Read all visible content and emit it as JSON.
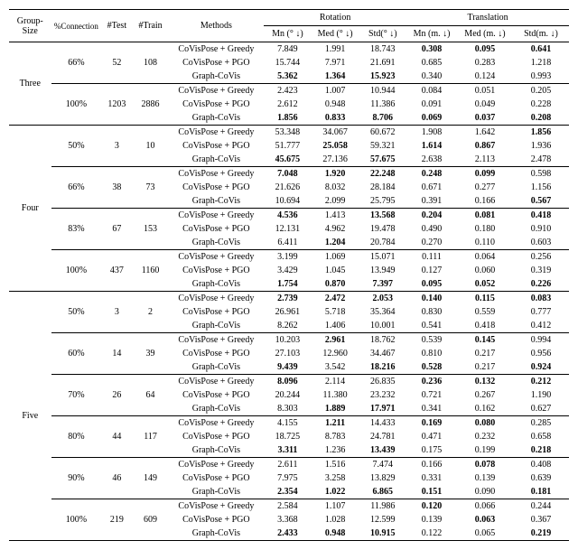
{
  "headers": {
    "group_size": "Group-Size",
    "pct_conn": "%Connection",
    "n_test": "#Test",
    "n_train": "#Train",
    "methods": "Methods",
    "rotation": "Rotation",
    "translation": "Translation",
    "sub": {
      "mn_deg": "Mn (° ↓)",
      "med_deg": "Med (° ↓)",
      "std_deg": "Std(° ↓)",
      "mn_m": "Mn (m. ↓)",
      "med_m": "Med (m. ↓)",
      "std_m": "Std(m. ↓)"
    }
  },
  "method_names": [
    "CoVisPose + Greedy",
    "CoVisPose + PGO",
    "Graph-CoVis"
  ],
  "rows": [
    {
      "grp": "Three",
      "pct": "66%",
      "test": "52",
      "train": "108",
      "m": [
        {
          "v": [
            "7.849",
            "1.991",
            "18.743",
            "0.308",
            "0.095",
            "0.641"
          ],
          "b": [
            0,
            0,
            0,
            1,
            1,
            1
          ]
        },
        {
          "v": [
            "15.744",
            "7.971",
            "21.691",
            "0.685",
            "0.283",
            "1.218"
          ],
          "b": [
            0,
            0,
            0,
            0,
            0,
            0
          ]
        },
        {
          "v": [
            "5.362",
            "1.364",
            "15.923",
            "0.340",
            "0.124",
            "0.993"
          ],
          "b": [
            1,
            1,
            1,
            0,
            0,
            0
          ]
        }
      ]
    },
    {
      "grp": "",
      "pct": "100%",
      "test": "1203",
      "train": "2886",
      "m": [
        {
          "v": [
            "2.423",
            "1.007",
            "10.944",
            "0.084",
            "0.051",
            "0.205"
          ],
          "b": [
            0,
            0,
            0,
            0,
            0,
            0
          ]
        },
        {
          "v": [
            "2.612",
            "0.948",
            "11.386",
            "0.091",
            "0.049",
            "0.228"
          ],
          "b": [
            0,
            0,
            0,
            0,
            0,
            0
          ]
        },
        {
          "v": [
            "1.856",
            "0.833",
            "8.706",
            "0.069",
            "0.037",
            "0.208"
          ],
          "b": [
            1,
            1,
            1,
            1,
            1,
            1
          ]
        }
      ]
    },
    {
      "grp": "Four",
      "pct": "50%",
      "test": "3",
      "train": "10",
      "m": [
        {
          "v": [
            "53.348",
            "34.067",
            "60.672",
            "1.908",
            "1.642",
            "1.856"
          ],
          "b": [
            0,
            0,
            0,
            0,
            0,
            1
          ]
        },
        {
          "v": [
            "51.777",
            "25.058",
            "59.321",
            "1.614",
            "0.867",
            "1.936"
          ],
          "b": [
            0,
            1,
            0,
            1,
            1,
            0
          ]
        },
        {
          "v": [
            "45.675",
            "27.136",
            "57.675",
            "2.638",
            "2.113",
            "2.478"
          ],
          "b": [
            1,
            0,
            1,
            0,
            0,
            0
          ]
        }
      ]
    },
    {
      "grp": "",
      "pct": "66%",
      "test": "38",
      "train": "73",
      "m": [
        {
          "v": [
            "7.048",
            "1.920",
            "22.248",
            "0.248",
            "0.099",
            "0.598"
          ],
          "b": [
            1,
            1,
            1,
            1,
            1,
            0
          ]
        },
        {
          "v": [
            "21.626",
            "8.032",
            "28.184",
            "0.671",
            "0.277",
            "1.156"
          ],
          "b": [
            0,
            0,
            0,
            0,
            0,
            0
          ]
        },
        {
          "v": [
            "10.694",
            "2.099",
            "25.795",
            "0.391",
            "0.166",
            "0.567"
          ],
          "b": [
            0,
            0,
            0,
            0,
            0,
            1
          ]
        }
      ]
    },
    {
      "grp": "",
      "pct": "83%",
      "test": "67",
      "train": "153",
      "m": [
        {
          "v": [
            "4.536",
            "1.413",
            "13.568",
            "0.204",
            "0.081",
            "0.418"
          ],
          "b": [
            1,
            0,
            1,
            1,
            1,
            1
          ]
        },
        {
          "v": [
            "12.131",
            "4.962",
            "19.478",
            "0.490",
            "0.180",
            "0.910"
          ],
          "b": [
            0,
            0,
            0,
            0,
            0,
            0
          ]
        },
        {
          "v": [
            "6.411",
            "1.204",
            "20.784",
            "0.270",
            "0.110",
            "0.603"
          ],
          "b": [
            0,
            1,
            0,
            0,
            0,
            0
          ]
        }
      ]
    },
    {
      "grp": "",
      "pct": "100%",
      "test": "437",
      "train": "1160",
      "m": [
        {
          "v": [
            "3.199",
            "1.069",
            "15.071",
            "0.111",
            "0.064",
            "0.256"
          ],
          "b": [
            0,
            0,
            0,
            0,
            0,
            0
          ]
        },
        {
          "v": [
            "3.429",
            "1.045",
            "13.949",
            "0.127",
            "0.060",
            "0.319"
          ],
          "b": [
            0,
            0,
            0,
            0,
            0,
            0
          ]
        },
        {
          "v": [
            "1.754",
            "0.870",
            "7.397",
            "0.095",
            "0.052",
            "0.226"
          ],
          "b": [
            1,
            1,
            1,
            1,
            1,
            1
          ]
        }
      ]
    },
    {
      "grp": "Five",
      "pct": "50%",
      "test": "3",
      "train": "2",
      "m": [
        {
          "v": [
            "2.739",
            "2.472",
            "2.053",
            "0.140",
            "0.115",
            "0.083"
          ],
          "b": [
            1,
            1,
            1,
            1,
            1,
            1
          ]
        },
        {
          "v": [
            "26.961",
            "5.718",
            "35.364",
            "0.830",
            "0.559",
            "0.777"
          ],
          "b": [
            0,
            0,
            0,
            0,
            0,
            0
          ]
        },
        {
          "v": [
            "8.262",
            "1.406",
            "10.001",
            "0.541",
            "0.418",
            "0.412"
          ],
          "b": [
            0,
            0,
            0,
            0,
            0,
            0
          ]
        }
      ]
    },
    {
      "grp": "",
      "pct": "60%",
      "test": "14",
      "train": "39",
      "m": [
        {
          "v": [
            "10.203",
            "2.961",
            "18.762",
            "0.539",
            "0.145",
            "0.994"
          ],
          "b": [
            0,
            1,
            0,
            0,
            1,
            0
          ]
        },
        {
          "v": [
            "27.103",
            "12.960",
            "34.467",
            "0.810",
            "0.217",
            "0.956"
          ],
          "b": [
            0,
            0,
            0,
            0,
            0,
            0
          ]
        },
        {
          "v": [
            "9.439",
            "3.542",
            "18.216",
            "0.528",
            "0.217",
            "0.924"
          ],
          "b": [
            1,
            0,
            1,
            1,
            0,
            1
          ]
        }
      ]
    },
    {
      "grp": "",
      "pct": "70%",
      "test": "26",
      "train": "64",
      "m": [
        {
          "v": [
            "8.096",
            "2.114",
            "26.835",
            "0.236",
            "0.132",
            "0.212"
          ],
          "b": [
            1,
            0,
            0,
            1,
            1,
            1
          ]
        },
        {
          "v": [
            "20.244",
            "11.380",
            "23.232",
            "0.721",
            "0.267",
            "1.190"
          ],
          "b": [
            0,
            0,
            0,
            0,
            0,
            0
          ]
        },
        {
          "v": [
            "8.303",
            "1.889",
            "17.971",
            "0.341",
            "0.162",
            "0.627"
          ],
          "b": [
            0,
            1,
            1,
            0,
            0,
            0
          ]
        }
      ]
    },
    {
      "grp": "",
      "pct": "80%",
      "test": "44",
      "train": "117",
      "m": [
        {
          "v": [
            "4.155",
            "1.211",
            "14.433",
            "0.169",
            "0.080",
            "0.285"
          ],
          "b": [
            0,
            1,
            0,
            1,
            1,
            0
          ]
        },
        {
          "v": [
            "18.725",
            "8.783",
            "24.781",
            "0.471",
            "0.232",
            "0.658"
          ],
          "b": [
            0,
            0,
            0,
            0,
            0,
            0
          ]
        },
        {
          "v": [
            "3.311",
            "1.236",
            "13.439",
            "0.175",
            "0.199",
            "0.218"
          ],
          "b": [
            1,
            0,
            1,
            0,
            0,
            1
          ]
        }
      ]
    },
    {
      "grp": "",
      "pct": "90%",
      "test": "46",
      "train": "149",
      "m": [
        {
          "v": [
            "2.611",
            "1.516",
            "7.474",
            "0.166",
            "0.078",
            "0.408"
          ],
          "b": [
            0,
            0,
            0,
            0,
            1,
            0
          ]
        },
        {
          "v": [
            "7.975",
            "3.258",
            "13.829",
            "0.331",
            "0.139",
            "0.639"
          ],
          "b": [
            0,
            0,
            0,
            0,
            0,
            0
          ]
        },
        {
          "v": [
            "2.354",
            "1.022",
            "6.865",
            "0.151",
            "0.090",
            "0.181"
          ],
          "b": [
            1,
            1,
            1,
            1,
            0,
            1
          ]
        }
      ]
    },
    {
      "grp": "",
      "pct": "100%",
      "test": "219",
      "train": "609",
      "m": [
        {
          "v": [
            "2.584",
            "1.107",
            "11.986",
            "0.120",
            "0.066",
            "0.244"
          ],
          "b": [
            0,
            0,
            0,
            1,
            0,
            0
          ]
        },
        {
          "v": [
            "3.368",
            "1.028",
            "12.599",
            "0.139",
            "0.063",
            "0.367"
          ],
          "b": [
            0,
            0,
            0,
            0,
            1,
            0
          ]
        },
        {
          "v": [
            "2.433",
            "0.948",
            "10.915",
            "0.122",
            "0.065",
            "0.219"
          ],
          "b": [
            1,
            1,
            1,
            0,
            0,
            1
          ]
        }
      ]
    }
  ],
  "group_starts": [
    0,
    2,
    6
  ],
  "group_spans": {
    "0": 2,
    "2": 4,
    "6": 6
  },
  "group_labels": {
    "0": "Three",
    "2": "Four",
    "6": "Five"
  }
}
